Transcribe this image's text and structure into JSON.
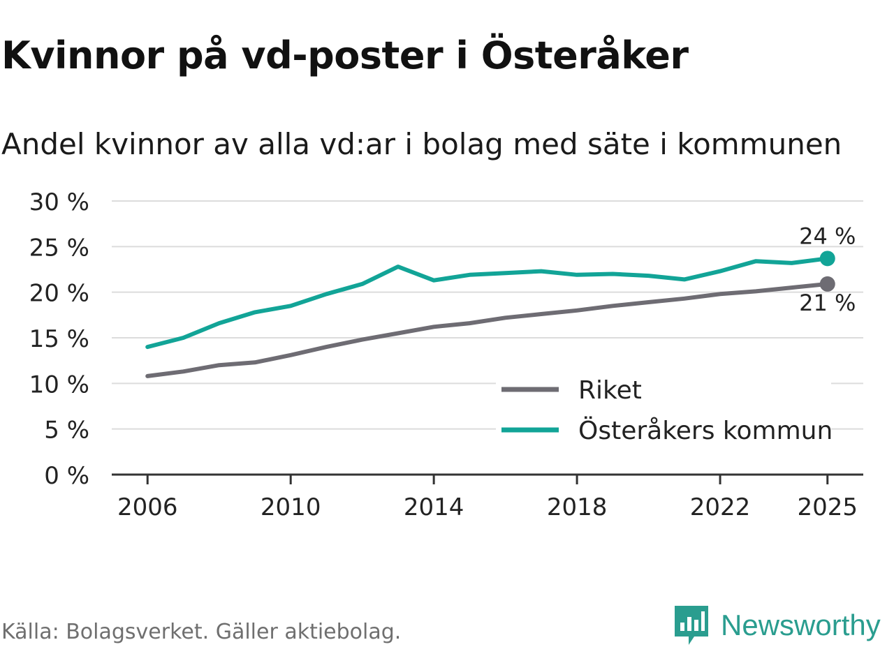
{
  "chart_data": {
    "type": "line",
    "title": "Kvinnor på vd-poster i Österåker",
    "subtitle": "Andel kvinnor av alla vd:ar i bolag med säte i kommunen",
    "x": [
      2006,
      2007,
      2008,
      2009,
      2010,
      2011,
      2012,
      2013,
      2014,
      2015,
      2016,
      2017,
      2018,
      2019,
      2020,
      2021,
      2022,
      2023,
      2024,
      2025
    ],
    "xticks": [
      2006,
      2010,
      2014,
      2018,
      2022,
      2025
    ],
    "xlim": [
      2005,
      2026
    ],
    "ylim": [
      0,
      30
    ],
    "yticks": [
      0,
      5,
      10,
      15,
      20,
      25,
      30
    ],
    "ytick_labels": [
      "0 %",
      "5 %",
      "10 %",
      "15 %",
      "20 %",
      "25 %",
      "30 %"
    ],
    "xlabel": "",
    "ylabel": "",
    "grid": true,
    "legend_position": "bottom-right",
    "series": [
      {
        "name": "Riket",
        "color": "#6e6c73",
        "values": [
          10.8,
          11.3,
          12.0,
          12.3,
          13.1,
          14.0,
          14.8,
          15.5,
          16.2,
          16.6,
          17.2,
          17.6,
          18.0,
          18.5,
          18.9,
          19.3,
          19.8,
          20.1,
          20.5,
          20.9
        ],
        "end_label": "21 %"
      },
      {
        "name": "Österåkers kommun",
        "color": "#12a497",
        "values": [
          14.0,
          15.0,
          16.6,
          17.8,
          18.5,
          19.8,
          20.9,
          22.8,
          21.3,
          21.9,
          22.1,
          22.3,
          21.9,
          22.0,
          21.8,
          21.4,
          22.3,
          23.4,
          23.2,
          23.7
        ],
        "end_label": "24 %"
      }
    ]
  },
  "footer": {
    "source": "Källa: Bolagsverket. Gäller aktiebolag.",
    "brand": "Newsworthy"
  },
  "colors": {
    "brand": "#2a9d8f",
    "grid": "#dcdcdc",
    "axis": "#333333"
  }
}
